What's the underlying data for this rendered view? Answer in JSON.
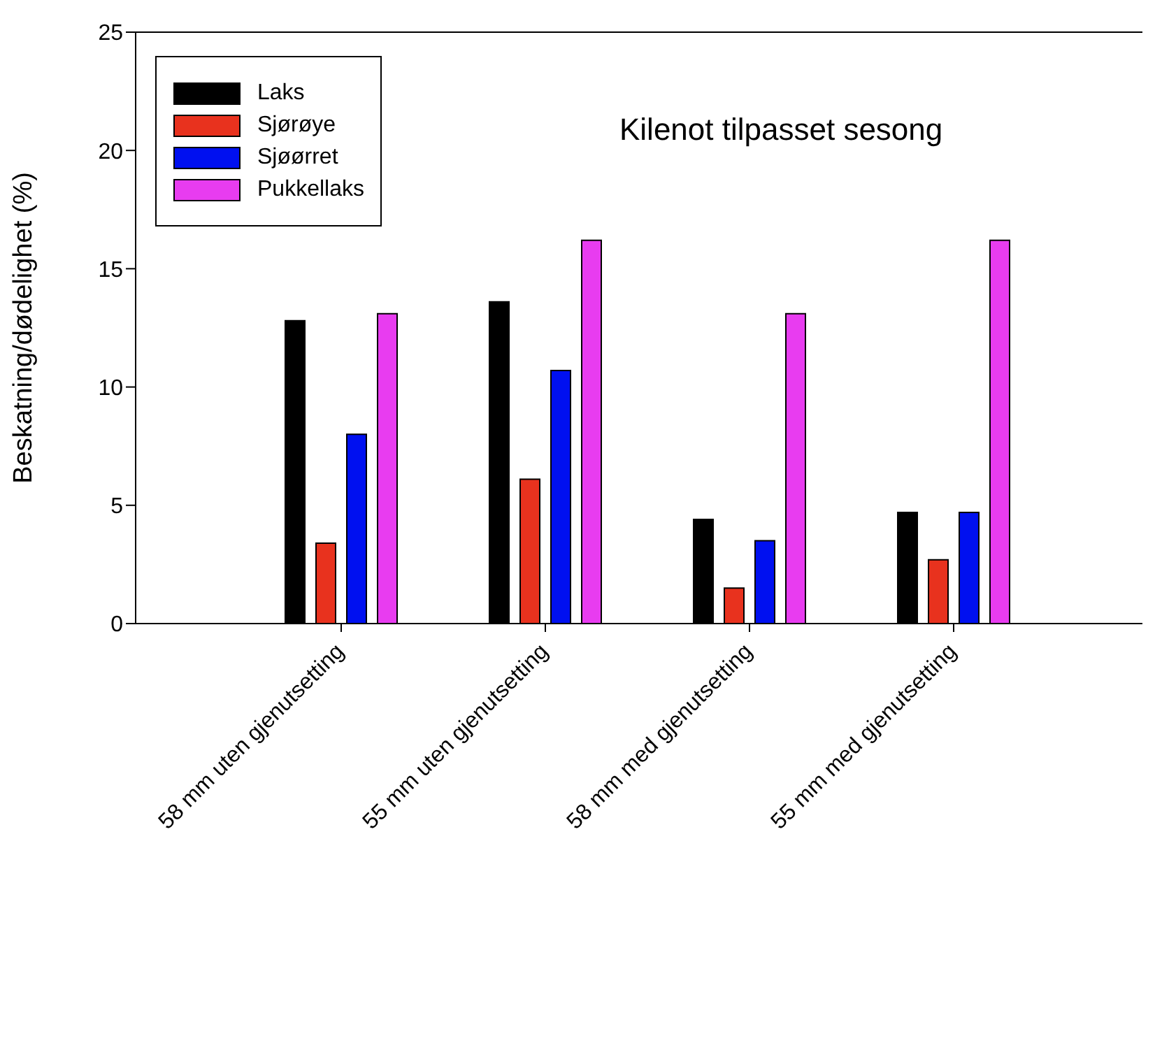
{
  "chart_data": {
    "type": "bar",
    "title": "Kilenot tilpasset sesong",
    "ylabel": "Beskatning/dødelighet (%)",
    "categories": [
      "58 mm uten gjenutsetting",
      "55 mm uten gjenutsetting",
      "58 mm med gjenutsetting",
      "55 mm med gjenutsetting"
    ],
    "series": [
      {
        "name": "Laks",
        "color": "#000000",
        "values": [
          12.8,
          13.6,
          4.4,
          4.7
        ]
      },
      {
        "name": "Sjørøye",
        "color": "#e8321e",
        "values": [
          3.4,
          6.1,
          1.5,
          2.7
        ]
      },
      {
        "name": "Sjøørret",
        "color": "#0010f0",
        "values": [
          8.0,
          10.7,
          3.5,
          4.7
        ]
      },
      {
        "name": "Pukkellaks",
        "color": "#e83cf0",
        "values": [
          13.1,
          16.2,
          13.1,
          16.2
        ]
      }
    ],
    "ylim": [
      0,
      25
    ],
    "yticks": [
      0,
      5,
      10,
      15,
      20,
      25
    ],
    "legend": "top left"
  }
}
